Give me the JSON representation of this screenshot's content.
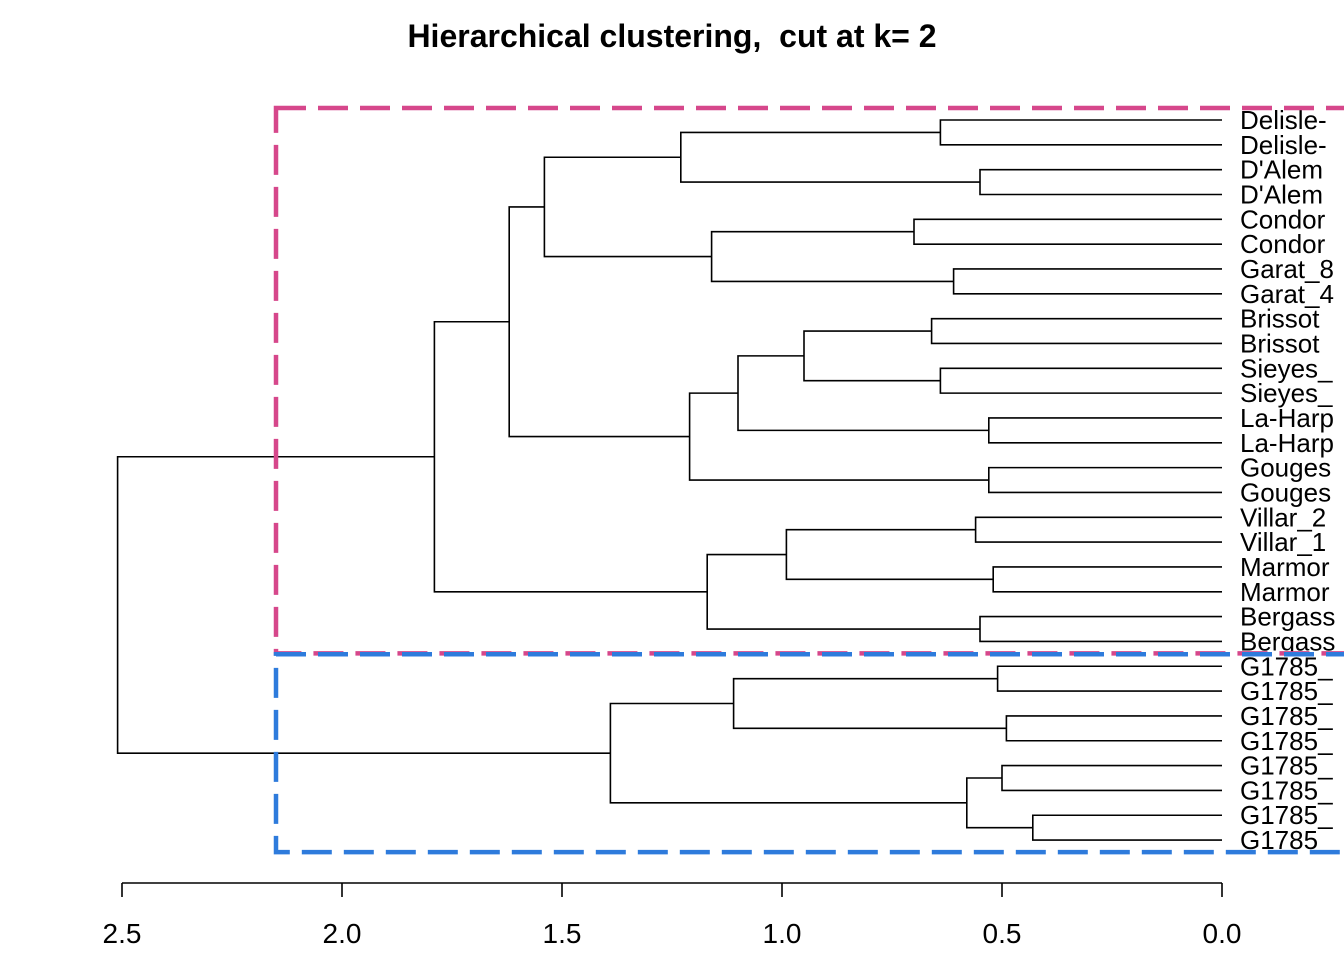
{
  "chart_data": {
    "type": "dendrogram",
    "title": "Hierarchical clustering,  cut at k= 2",
    "xlabel": "",
    "ylabel": "",
    "xlim": [
      2.5,
      0.0
    ],
    "x_ticks": [
      "2.5",
      "2.0",
      "1.5",
      "1.0",
      "0.5",
      "0.0"
    ],
    "x_tick_values": [
      2.5,
      2.0,
      1.5,
      1.0,
      0.5,
      0.0
    ],
    "leaves": [
      "Delisle-",
      "Delisle-",
      "D'Alem",
      "D'Alem",
      "Condor",
      "Condor",
      "Garat_8",
      "Garat_4",
      "Brissot",
      "Brissot",
      "Sieyes_",
      "Sieyes_",
      "La-Harp",
      "La-Harp",
      "Gouges",
      "Gouges",
      "Villar_2",
      "Villar_1",
      "Marmor",
      "Marmor",
      "Bergass",
      "Bergass",
      "G1785_",
      "G1785_",
      "G1785_",
      "G1785_",
      "G1785_",
      "G1785_",
      "G1785_",
      "G1785_"
    ],
    "merges": [
      {
        "id": "a1",
        "left": "L0",
        "right": "L1",
        "height": 0.64
      },
      {
        "id": "a2",
        "left": "L2",
        "right": "L3",
        "height": 0.55
      },
      {
        "id": "a3",
        "left": "a1",
        "right": "a2",
        "height": 1.23
      },
      {
        "id": "b1",
        "left": "L4",
        "right": "L5",
        "height": 0.7
      },
      {
        "id": "b2",
        "left": "L6",
        "right": "L7",
        "height": 0.61
      },
      {
        "id": "b3",
        "left": "b1",
        "right": "b2",
        "height": 1.16
      },
      {
        "id": "c1",
        "left": "a3",
        "right": "b3",
        "height": 1.54
      },
      {
        "id": "d1",
        "left": "L8",
        "right": "L9",
        "height": 0.66
      },
      {
        "id": "d2",
        "left": "L10",
        "right": "L11",
        "height": 0.64
      },
      {
        "id": "d3",
        "left": "d1",
        "right": "d2",
        "height": 0.95
      },
      {
        "id": "d4",
        "left": "L12",
        "right": "L13",
        "height": 0.53
      },
      {
        "id": "d5",
        "left": "d3",
        "right": "d4",
        "height": 1.1
      },
      {
        "id": "d6",
        "left": "L14",
        "right": "L15",
        "height": 0.53
      },
      {
        "id": "d7",
        "left": "d5",
        "right": "d6",
        "height": 1.21
      },
      {
        "id": "e1",
        "left": "c1",
        "right": "d7",
        "height": 1.62
      },
      {
        "id": "f1",
        "left": "L16",
        "right": "L17",
        "height": 0.56
      },
      {
        "id": "f2",
        "left": "L18",
        "right": "L19",
        "height": 0.52
      },
      {
        "id": "f3",
        "left": "f1",
        "right": "f2",
        "height": 0.99
      },
      {
        "id": "f4",
        "left": "L20",
        "right": "L21",
        "height": 0.55
      },
      {
        "id": "f5",
        "left": "f3",
        "right": "f4",
        "height": 1.17
      },
      {
        "id": "g1",
        "left": "e1",
        "right": "f5",
        "height": 1.79
      },
      {
        "id": "h1",
        "left": "L22",
        "right": "L23",
        "height": 0.51
      },
      {
        "id": "h2",
        "left": "L24",
        "right": "L25",
        "height": 0.49
      },
      {
        "id": "h3",
        "left": "h1",
        "right": "h2",
        "height": 1.11
      },
      {
        "id": "h4",
        "left": "L26",
        "right": "L27",
        "height": 0.5
      },
      {
        "id": "h5",
        "left": "L28",
        "right": "L29",
        "height": 0.43
      },
      {
        "id": "h6",
        "left": "h4",
        "right": "h5",
        "height": 0.58
      },
      {
        "id": "h7",
        "left": "h3",
        "right": "h6",
        "height": 1.39
      },
      {
        "id": "root",
        "left": "g1",
        "right": "h7",
        "height": 2.51
      }
    ],
    "cut": {
      "k": 2,
      "height": 2.15
    },
    "clusters": [
      {
        "first_leaf": 0,
        "last_leaf": 21,
        "color": "#d6478b"
      },
      {
        "first_leaf": 22,
        "last_leaf": 29,
        "color": "#2e7bdc"
      }
    ]
  }
}
